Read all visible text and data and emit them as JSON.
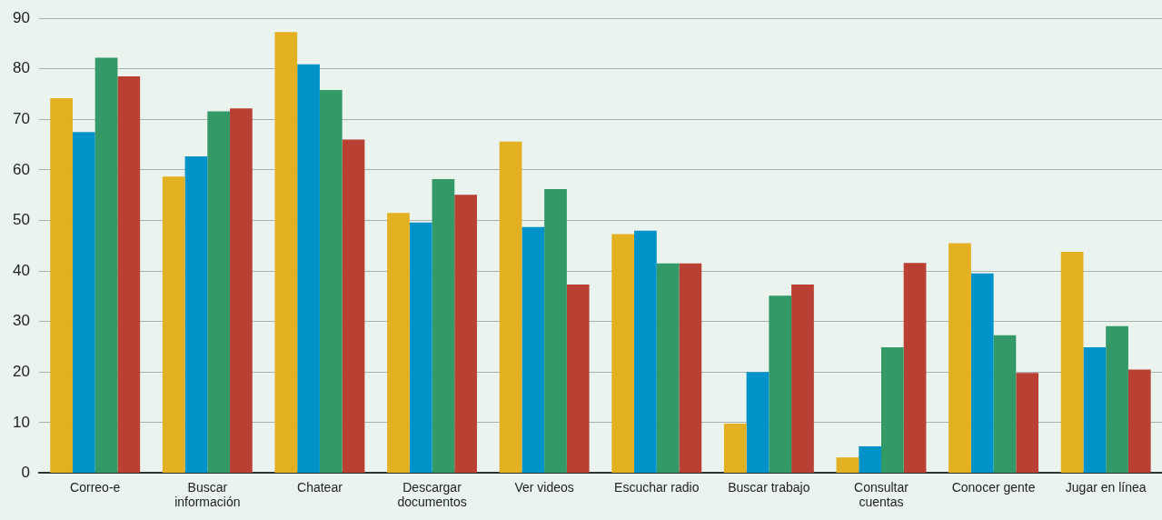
{
  "chart_data": {
    "type": "bar",
    "categories": [
      "Correo-e",
      "Buscar información",
      "Chatear",
      "Descargar documentos",
      "Ver videos",
      "Escuchar radio",
      "Buscar trabajo",
      "Consultar cuentas",
      "Conocer gente",
      "Jugar en línea"
    ],
    "series": [
      {
        "color": "#e3b022",
        "values": [
          74.2,
          58.7,
          87.3,
          51.5,
          65.6,
          47.3,
          9.8,
          3.1,
          45.5,
          43.8
        ]
      },
      {
        "color": "#0093c9",
        "values": [
          67.5,
          62.7,
          80.9,
          49.6,
          48.7,
          48,
          20,
          5.3,
          39.5,
          24.9
        ]
      },
      {
        "color": "#339966",
        "values": [
          82.2,
          71.6,
          75.8,
          58.2,
          56.2,
          41.5,
          35.1,
          24.9,
          27.3,
          29.1
        ]
      },
      {
        "color": "#b94032",
        "values": [
          78.5,
          72.2,
          66,
          55.1,
          37.3,
          41.5,
          37.3,
          41.6,
          19.8,
          20.5
        ]
      }
    ],
    "ylim": [
      0,
      90
    ],
    "yticks": [
      0,
      10,
      20,
      30,
      40,
      50,
      60,
      70,
      80,
      90
    ],
    "grid": "y",
    "legend": false
  }
}
